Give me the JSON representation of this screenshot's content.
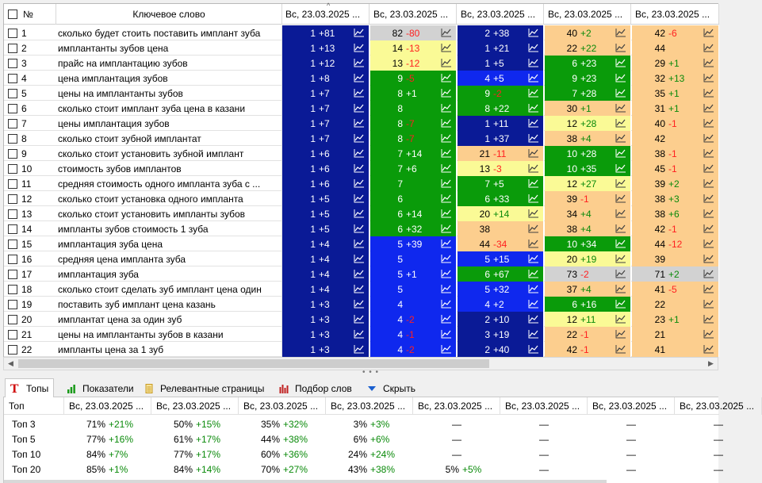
{
  "grid": {
    "header": {
      "num": "№",
      "keyword": "Ключевое слово",
      "sort_indicator": "^",
      "dates": [
        "Вс, 23.03.2025 ...",
        "Вс, 23.03.2025 ...",
        "Вс, 23.03.2025 ...",
        "Вс, 23.03.2025 ...",
        "Вс, 23.03.2025 ..."
      ]
    },
    "legend_colors": {
      "dk": "#0a1a96",
      "bl": "#0f28ee",
      "gr": "#0a9b0a",
      "ye": "#fafa96",
      "or": "#fcce8e",
      "gy": "#d2d2d2"
    },
    "rows": [
      {
        "n": "1",
        "kw": "сколько будет стоить поставить имплант зуба",
        "p": [
          [
            "1",
            "+81",
            "dk"
          ],
          [
            "82",
            "-80",
            "gy"
          ],
          [
            "2",
            "+38",
            "dk"
          ],
          [
            "40",
            "+2",
            "or"
          ],
          [
            "42",
            "-6",
            "or"
          ]
        ]
      },
      {
        "n": "2",
        "kw": "имплантанты зубов цена",
        "p": [
          [
            "1",
            "+13",
            "dk"
          ],
          [
            "14",
            "-13",
            "ye"
          ],
          [
            "1",
            "+21",
            "dk"
          ],
          [
            "22",
            "+22",
            "or"
          ],
          [
            "44",
            "",
            "or"
          ]
        ]
      },
      {
        "n": "3",
        "kw": "прайс на имплантацию зубов",
        "p": [
          [
            "1",
            "+12",
            "dk"
          ],
          [
            "13",
            "-12",
            "ye"
          ],
          [
            "1",
            "+5",
            "dk"
          ],
          [
            "6",
            "+23",
            "gr"
          ],
          [
            "29",
            "+1",
            "or"
          ]
        ]
      },
      {
        "n": "4",
        "kw": "цена имплантация зубов",
        "p": [
          [
            "1",
            "+8",
            "dk"
          ],
          [
            "9",
            "-5",
            "gr"
          ],
          [
            "4",
            "+5",
            "bl"
          ],
          [
            "9",
            "+23",
            "gr"
          ],
          [
            "32",
            "+13",
            "or"
          ]
        ]
      },
      {
        "n": "5",
        "kw": "цены на имплантанты зубов",
        "p": [
          [
            "1",
            "+7",
            "dk"
          ],
          [
            "8",
            "+1",
            "gr"
          ],
          [
            "9",
            "-2",
            "gr"
          ],
          [
            "7",
            "+28",
            "gr"
          ],
          [
            "35",
            "+1",
            "or"
          ]
        ]
      },
      {
        "n": "6",
        "kw": "сколько стоит имплант зуба цена в казани",
        "p": [
          [
            "1",
            "+7",
            "dk"
          ],
          [
            "8",
            "",
            "gr"
          ],
          [
            "8",
            "+22",
            "gr"
          ],
          [
            "30",
            "+1",
            "or"
          ],
          [
            "31",
            "+1",
            "or"
          ]
        ]
      },
      {
        "n": "7",
        "kw": "цены имплантация зубов",
        "p": [
          [
            "1",
            "+7",
            "dk"
          ],
          [
            "8",
            "-7",
            "gr"
          ],
          [
            "1",
            "+11",
            "dk"
          ],
          [
            "12",
            "+28",
            "ye"
          ],
          [
            "40",
            "-1",
            "or"
          ]
        ]
      },
      {
        "n": "8",
        "kw": "сколько стоит зубной имплантат",
        "p": [
          [
            "1",
            "+7",
            "dk"
          ],
          [
            "8",
            "-7",
            "gr"
          ],
          [
            "1",
            "+37",
            "dk"
          ],
          [
            "38",
            "+4",
            "or"
          ],
          [
            "42",
            "",
            "or"
          ]
        ]
      },
      {
        "n": "9",
        "kw": "сколько стоит установить зубной имплант",
        "p": [
          [
            "1",
            "+6",
            "dk"
          ],
          [
            "7",
            "+14",
            "gr"
          ],
          [
            "21",
            "-11",
            "or"
          ],
          [
            "10",
            "+28",
            "gr"
          ],
          [
            "38",
            "-1",
            "or"
          ]
        ]
      },
      {
        "n": "10",
        "kw": "стоимость зубов имплантов",
        "p": [
          [
            "1",
            "+6",
            "dk"
          ],
          [
            "7",
            "+6",
            "gr"
          ],
          [
            "13",
            "-3",
            "ye"
          ],
          [
            "10",
            "+35",
            "gr"
          ],
          [
            "45",
            "-1",
            "or"
          ]
        ]
      },
      {
        "n": "11",
        "kw": "средняя стоимость одного импланта зуба с ...",
        "p": [
          [
            "1",
            "+6",
            "dk"
          ],
          [
            "7",
            "",
            "gr"
          ],
          [
            "7",
            "+5",
            "gr"
          ],
          [
            "12",
            "+27",
            "ye"
          ],
          [
            "39",
            "+2",
            "or"
          ]
        ]
      },
      {
        "n": "12",
        "kw": "сколько стоит установка одного импланта",
        "p": [
          [
            "1",
            "+5",
            "dk"
          ],
          [
            "6",
            "",
            "gr"
          ],
          [
            "6",
            "+33",
            "gr"
          ],
          [
            "39",
            "-1",
            "or"
          ],
          [
            "38",
            "+3",
            "or"
          ]
        ]
      },
      {
        "n": "13",
        "kw": "сколько стоит установить импланты зубов",
        "p": [
          [
            "1",
            "+5",
            "dk"
          ],
          [
            "6",
            "+14",
            "gr"
          ],
          [
            "20",
            "+14",
            "ye"
          ],
          [
            "34",
            "+4",
            "or"
          ],
          [
            "38",
            "+6",
            "or"
          ]
        ]
      },
      {
        "n": "14",
        "kw": "импланты зубов стоимость 1 зуба",
        "p": [
          [
            "1",
            "+5",
            "dk"
          ],
          [
            "6",
            "+32",
            "gr"
          ],
          [
            "38",
            "",
            "or"
          ],
          [
            "38",
            "+4",
            "or"
          ],
          [
            "42",
            "-1",
            "or"
          ]
        ]
      },
      {
        "n": "15",
        "kw": "имплантация зуба цена",
        "p": [
          [
            "1",
            "+4",
            "dk"
          ],
          [
            "5",
            "+39",
            "bl"
          ],
          [
            "44",
            "-34",
            "or"
          ],
          [
            "10",
            "+34",
            "gr"
          ],
          [
            "44",
            "-12",
            "or"
          ]
        ]
      },
      {
        "n": "16",
        "kw": "средняя цена импланта зуба",
        "p": [
          [
            "1",
            "+4",
            "dk"
          ],
          [
            "5",
            "",
            "bl"
          ],
          [
            "5",
            "+15",
            "bl"
          ],
          [
            "20",
            "+19",
            "ye"
          ],
          [
            "39",
            "",
            "or"
          ]
        ]
      },
      {
        "n": "17",
        "kw": "имплантация зуба",
        "p": [
          [
            "1",
            "+4",
            "dk"
          ],
          [
            "5",
            "+1",
            "bl"
          ],
          [
            "6",
            "+67",
            "gr"
          ],
          [
            "73",
            "-2",
            "gy"
          ],
          [
            "71",
            "+2",
            "gy"
          ]
        ]
      },
      {
        "n": "18",
        "kw": "сколько стоит сделать зуб имплант цена один",
        "p": [
          [
            "1",
            "+4",
            "dk"
          ],
          [
            "5",
            "",
            "bl"
          ],
          [
            "5",
            "+32",
            "bl"
          ],
          [
            "37",
            "+4",
            "or"
          ],
          [
            "41",
            "-5",
            "or"
          ]
        ]
      },
      {
        "n": "19",
        "kw": "поставить зуб имплант цена казань",
        "p": [
          [
            "1",
            "+3",
            "dk"
          ],
          [
            "4",
            "",
            "bl"
          ],
          [
            "4",
            "+2",
            "bl"
          ],
          [
            "6",
            "+16",
            "gr"
          ],
          [
            "22",
            "",
            "or"
          ]
        ]
      },
      {
        "n": "20",
        "kw": "имплантат цена за один зуб",
        "p": [
          [
            "1",
            "+3",
            "dk"
          ],
          [
            "4",
            "-2",
            "bl"
          ],
          [
            "2",
            "+10",
            "dk"
          ],
          [
            "12",
            "+11",
            "ye"
          ],
          [
            "23",
            "+1",
            "or"
          ]
        ]
      },
      {
        "n": "21",
        "kw": "цены на имплантанты зубов в казани",
        "p": [
          [
            "1",
            "+3",
            "dk"
          ],
          [
            "4",
            "-1",
            "bl"
          ],
          [
            "3",
            "+19",
            "dk"
          ],
          [
            "22",
            "-1",
            "or"
          ],
          [
            "21",
            "",
            "or"
          ]
        ]
      },
      {
        "n": "22",
        "kw": "импланты цена за 1 зуб",
        "p": [
          [
            "1",
            "+3",
            "dk"
          ],
          [
            "4",
            "-2",
            "bl"
          ],
          [
            "2",
            "+40",
            "dk"
          ],
          [
            "42",
            "-1",
            "or"
          ],
          [
            "41",
            "",
            "or"
          ]
        ]
      }
    ]
  },
  "tabs": [
    {
      "label": "Топы",
      "icon": "top-t-icon",
      "active": true
    },
    {
      "label": "Показатели",
      "icon": "bar-chart-icon"
    },
    {
      "label": "Релевантные страницы",
      "icon": "document-icon"
    },
    {
      "label": "Подбор слов",
      "icon": "column-chart-icon"
    },
    {
      "label": "Скрыть",
      "icon": "chevron-down-icon"
    }
  ],
  "tops": {
    "header_first": "Топ",
    "dates": [
      "Вс, 23.03.2025 ...",
      "Вс, 23.03.2025 ...",
      "Вс, 23.03.2025 ...",
      "Вс, 23.03.2025 ...",
      "Вс, 23.03.2025 ...",
      "Вс, 23.03.2025 ...",
      "Вс, 23.03.2025 ...",
      "Вс, 23.03.2025 ..."
    ],
    "rows": [
      {
        "label": "Топ 3",
        "v": [
          [
            "71%",
            "+21%"
          ],
          [
            "50%",
            "+15%"
          ],
          [
            "35%",
            "+32%"
          ],
          [
            "3%",
            "+3%"
          ],
          [
            "—",
            ""
          ],
          [
            "—",
            ""
          ],
          [
            "—",
            ""
          ],
          [
            "—",
            ""
          ]
        ]
      },
      {
        "label": "Топ 5",
        "v": [
          [
            "77%",
            "+16%"
          ],
          [
            "61%",
            "+17%"
          ],
          [
            "44%",
            "+38%"
          ],
          [
            "6%",
            "+6%"
          ],
          [
            "—",
            ""
          ],
          [
            "—",
            ""
          ],
          [
            "—",
            ""
          ],
          [
            "—",
            ""
          ]
        ]
      },
      {
        "label": "Топ 10",
        "v": [
          [
            "84%",
            "+7%"
          ],
          [
            "77%",
            "+17%"
          ],
          [
            "60%",
            "+36%"
          ],
          [
            "24%",
            "+24%"
          ],
          [
            "—",
            ""
          ],
          [
            "—",
            ""
          ],
          [
            "—",
            ""
          ],
          [
            "—",
            ""
          ]
        ]
      },
      {
        "label": "Топ 20",
        "v": [
          [
            "85%",
            "+1%"
          ],
          [
            "84%",
            "+14%"
          ],
          [
            "70%",
            "+27%"
          ],
          [
            "43%",
            "+38%"
          ],
          [
            "5%",
            "+5%"
          ],
          [
            "—",
            ""
          ],
          [
            "—",
            ""
          ],
          [
            "—",
            ""
          ]
        ]
      }
    ]
  }
}
